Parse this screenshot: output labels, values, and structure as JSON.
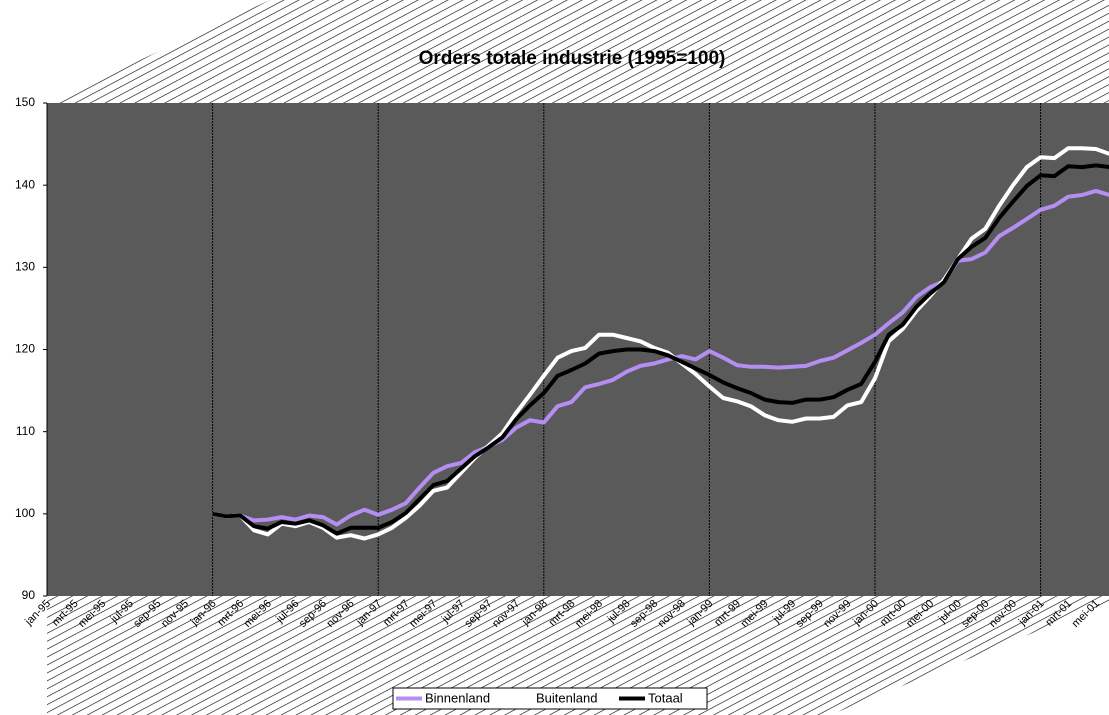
{
  "chart_data": {
    "type": "line",
    "title": "Orders totale industrie (1995=100)",
    "categories": [
      "jan-95",
      null,
      "mrt-95",
      null,
      "mei-95",
      null,
      "jul-95",
      null,
      "sep-95",
      null,
      "nov-95",
      null,
      "jan-96",
      null,
      "mrt-96",
      null,
      "mei-96",
      null,
      "jul-96",
      null,
      "sep-96",
      null,
      "nov-96",
      null,
      "jan-97",
      null,
      "mrt-97",
      null,
      "mei-97",
      null,
      "jul-97",
      null,
      "sep-97",
      null,
      "nov-97",
      null,
      "jan-98",
      null,
      "mrt-98",
      null,
      "mei-98",
      null,
      "jul-98",
      null,
      "sep-98",
      null,
      "nov-98",
      null,
      "jan-99",
      null,
      "mrt-99",
      null,
      "mei-99",
      null,
      "jul-99",
      null,
      "sep-99",
      null,
      "nov-99",
      null,
      "jan-00",
      null,
      "mrt-00",
      null,
      "mei-00",
      null,
      "jul-00",
      null,
      "sep-00",
      null,
      "nov-00",
      null,
      "jan-01",
      null,
      "mrt-01",
      null,
      "mei-01",
      null
    ],
    "series": [
      {
        "name": "Binnenland",
        "color": "#b48ef2",
        "values": [
          null,
          null,
          null,
          null,
          null,
          null,
          null,
          null,
          null,
          null,
          null,
          null,
          100,
          99.7,
          99.8,
          99.2,
          99.3,
          99.6,
          99.3,
          99.8,
          99.6,
          98.7,
          99.8,
          100.5,
          99.9,
          100.5,
          101.3,
          103.2,
          105.0,
          105.8,
          106.2,
          107.5,
          108.2,
          109.0,
          110.5,
          111.4,
          111.1,
          113.1,
          113.6,
          115.4,
          115.8,
          116.3,
          117.3,
          118.0,
          118.3,
          118.8,
          119.2,
          118.8,
          119.8,
          119.0,
          118.1,
          117.9,
          117.9,
          117.8,
          117.9,
          118.0,
          118.6,
          119.0,
          119.9,
          120.8,
          121.8,
          123.2,
          124.5,
          126.4,
          127.6,
          128.3,
          130.8,
          131.0,
          131.8,
          133.8,
          134.8,
          135.9,
          137.0,
          137.5,
          138.6,
          138.8,
          139.3,
          138.8
        ]
      },
      {
        "name": "Buitenland",
        "color": "#ffffff",
        "values": [
          null,
          null,
          null,
          null,
          null,
          null,
          null,
          null,
          null,
          null,
          null,
          null,
          100,
          99.7,
          99.8,
          98.0,
          97.5,
          98.8,
          98.5,
          99.0,
          98.3,
          97.1,
          97.4,
          97.0,
          97.5,
          98.3,
          99.5,
          101.0,
          102.8,
          103.2,
          105.0,
          106.8,
          108.3,
          109.8,
          112.3,
          114.5,
          116.8,
          119.0,
          119.8,
          120.2,
          121.8,
          121.8,
          121.4,
          121.0,
          120.2,
          119.6,
          118.3,
          117.0,
          115.5,
          114.1,
          113.7,
          113.1,
          112.0,
          111.4,
          111.2,
          111.6,
          111.6,
          111.8,
          113.2,
          113.6,
          116.5,
          121.0,
          122.5,
          124.7,
          126.5,
          128.5,
          131.0,
          133.5,
          134.7,
          137.5,
          140.0,
          142.2,
          143.4,
          143.3,
          144.5,
          144.5,
          144.4,
          143.8
        ]
      },
      {
        "name": "Totaal",
        "color": "#000000",
        "values": [
          null,
          null,
          null,
          null,
          null,
          null,
          null,
          null,
          null,
          null,
          null,
          null,
          100,
          99.7,
          99.8,
          98.5,
          98.2,
          99.0,
          98.8,
          99.2,
          98.6,
          97.6,
          98.3,
          98.3,
          98.3,
          99.0,
          100.1,
          101.8,
          103.5,
          104.0,
          105.5,
          107.0,
          108.1,
          109.3,
          111.5,
          113.2,
          114.7,
          116.8,
          117.5,
          118.3,
          119.5,
          119.8,
          120.0,
          120.0,
          119.8,
          119.3,
          118.5,
          117.7,
          116.9,
          116.0,
          115.3,
          114.7,
          113.9,
          113.6,
          113.5,
          113.9,
          113.9,
          114.2,
          115.1,
          115.8,
          118.5,
          121.8,
          123.0,
          125.2,
          126.8,
          128.2,
          131.0,
          132.5,
          133.6,
          136.0,
          138.0,
          139.9,
          141.2,
          141.1,
          142.3,
          142.2,
          142.4,
          142.2
        ]
      }
    ],
    "ylim": [
      90,
      150
    ],
    "yticks": [
      90,
      100,
      110,
      120,
      130,
      140,
      150
    ],
    "legend": "bottom"
  }
}
